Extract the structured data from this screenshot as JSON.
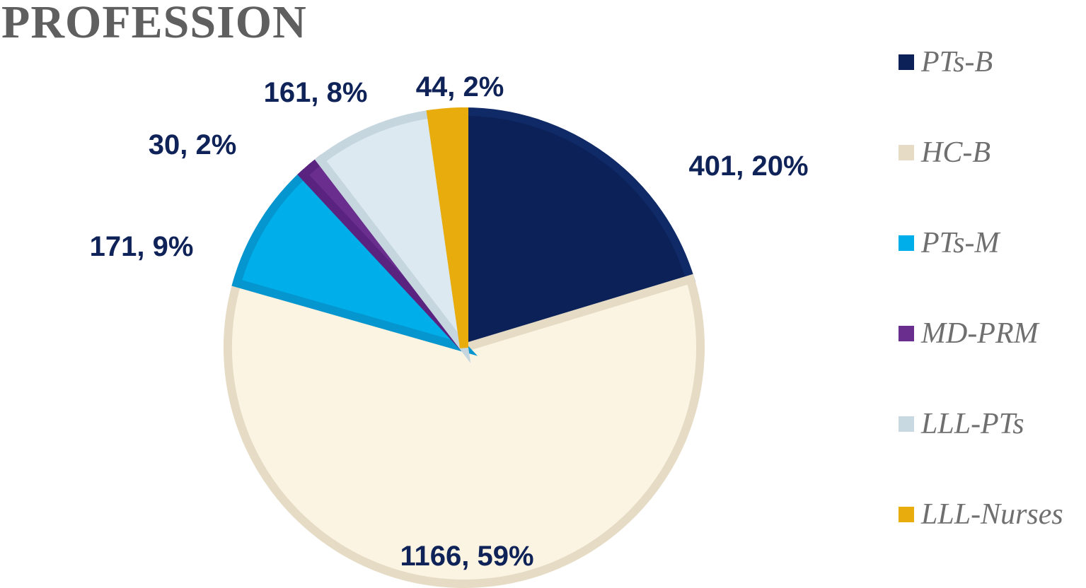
{
  "chart_data": {
    "type": "pie",
    "title": "PROFESSION",
    "slices": [
      {
        "name": "PTs-B",
        "value": 401,
        "percent": 20,
        "label": "401, 20%",
        "color": "#0b2158",
        "stroke": "#0f2a66"
      },
      {
        "name": "HC-B",
        "value": 1166,
        "percent": 59,
        "label": "1166, 59%",
        "color": "#fbf4e2",
        "stroke": "#e6dcc6"
      },
      {
        "name": "PTs-M",
        "value": 171,
        "percent": 9,
        "label": "171, 9%",
        "color": "#00aeea",
        "stroke": "#0596cf"
      },
      {
        "name": "MD-PRM",
        "value": 30,
        "percent": 2,
        "label": "30, 2%",
        "color": "#6a2f8e",
        "stroke": "#5b2380"
      },
      {
        "name": "LLL-PTs",
        "value": 161,
        "percent": 8,
        "label": "161, 8%",
        "color": "#dde9f0",
        "stroke": "#c6d6df"
      },
      {
        "name": "LLL-Nurses",
        "value": 44,
        "percent": 2,
        "label": "44, 2%",
        "color": "#e8ad0c",
        "stroke": "#e8ad0c"
      }
    ],
    "legend_position": "right"
  }
}
